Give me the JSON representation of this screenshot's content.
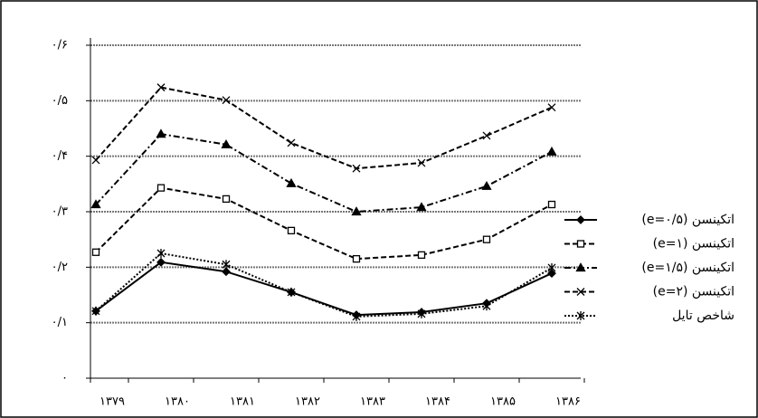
{
  "chart_data": {
    "type": "line",
    "categories": [
      "۱۳۷۹",
      "۱۳۸۰",
      "۱۳۸۱",
      "۱۳۸۲",
      "۱۳۸۳",
      "۱۳۸۴",
      "۱۳۸۵",
      "۱۳۸۶"
    ],
    "series": [
      {
        "name": "اتکینسن (e=۰/۵)",
        "color": "#000000",
        "dash": "solid",
        "marker": "diamond",
        "values": [
          0.121,
          0.209,
          0.192,
          0.155,
          0.114,
          0.119,
          0.135,
          0.189
        ]
      },
      {
        "name": "اتکینسن (e=۱)",
        "color": "#000000",
        "dash": "dashed",
        "marker": "square",
        "values": [
          0.227,
          0.343,
          0.323,
          0.266,
          0.215,
          0.222,
          0.25,
          0.313
        ]
      },
      {
        "name": "اتکینسن (e=۱/۵)",
        "color": "#000000",
        "dash": "dashdot",
        "marker": "triangle",
        "values": [
          0.313,
          0.44,
          0.421,
          0.351,
          0.3,
          0.308,
          0.346,
          0.408
        ]
      },
      {
        "name": "اتکینسن (e=۲)",
        "color": "#000000",
        "dash": "dashed",
        "marker": "x",
        "values": [
          0.393,
          0.524,
          0.501,
          0.424,
          0.378,
          0.388,
          0.437,
          0.488
        ]
      },
      {
        "name": "شاخص تایل",
        "color": "#000000",
        "dash": "dotted",
        "marker": "star",
        "values": [
          0.121,
          0.225,
          0.205,
          0.155,
          0.111,
          0.116,
          0.13,
          0.199
        ]
      }
    ],
    "ylim": [
      0,
      0.6
    ],
    "yticks": [
      {
        "value": 0,
        "label": "۰"
      },
      {
        "value": 0.1,
        "label": "۰/۱"
      },
      {
        "value": 0.2,
        "label": "۰/۲"
      },
      {
        "value": 0.3,
        "label": "۰/۳"
      },
      {
        "value": 0.4,
        "label": "۰/۴"
      },
      {
        "value": 0.5,
        "label": "۰/۵"
      },
      {
        "value": 0.6,
        "label": "۰/۶"
      }
    ],
    "grid": true,
    "legend": "right"
  }
}
